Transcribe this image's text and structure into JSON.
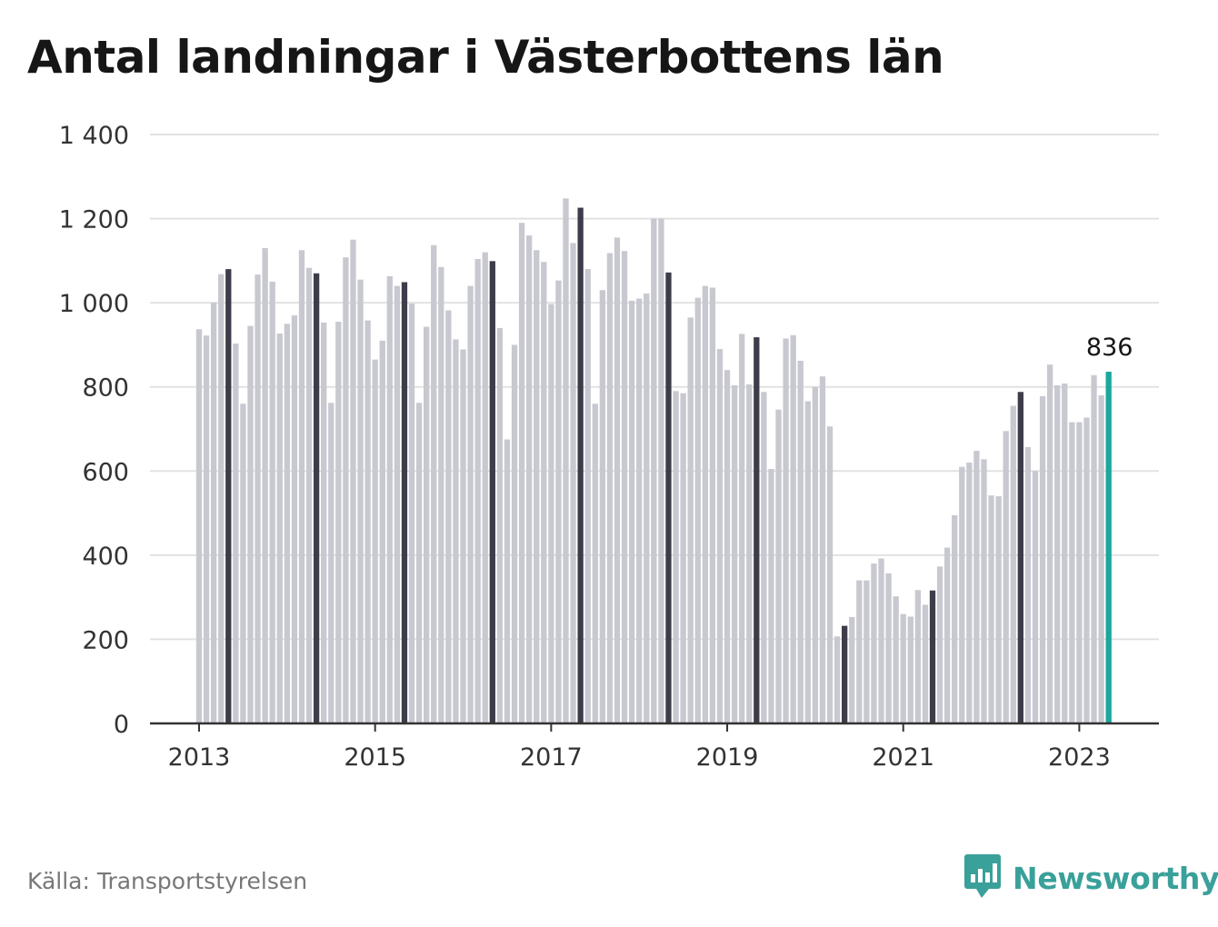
{
  "title": "Antal landningar i Västerbottens län",
  "source": "Källa: Transportstyrelsen",
  "brand": {
    "name": "Newsworthy",
    "icon": "bar-chart-speech-bubble-icon",
    "color": "#3aa09a"
  },
  "chart_data": {
    "type": "bar",
    "title": "Antal landningar i Västerbottens län",
    "xlabel": "",
    "ylabel": "",
    "ylim": [
      0,
      1400
    ],
    "yticks": [
      "0",
      "200",
      "400",
      "600",
      "800",
      "1 000",
      "1 200",
      "1 400"
    ],
    "xticks": [
      "2013",
      "2015",
      "2017",
      "2019",
      "2021",
      "2023"
    ],
    "grid": true,
    "start": "2013-01",
    "end": "2023-05",
    "colors": {
      "default": "#c8c8d0",
      "highlight_may": "#3d3d4a",
      "latest": "#1aa89c",
      "grid": "#e2e2e2",
      "axis": "#333333"
    },
    "annotation": {
      "category": "2023-05",
      "text": "836"
    },
    "values": [
      937,
      922,
      1000,
      1068,
      1080,
      903,
      760,
      945,
      1067,
      1130,
      1050,
      927,
      950,
      970,
      1125,
      1083,
      1070,
      953,
      762,
      955,
      1108,
      1150,
      1055,
      958,
      865,
      910,
      1063,
      1040,
      1049,
      998,
      762,
      943,
      1137,
      1085,
      982,
      913,
      889,
      1040,
      1104,
      1120,
      1099,
      940,
      675,
      900,
      1190,
      1160,
      1125,
      1097,
      997,
      1053,
      1248,
      1142,
      1226,
      1080,
      760,
      1030,
      1118,
      1155,
      1123,
      1005,
      1010,
      1022,
      1200,
      1200,
      1072,
      790,
      785,
      965,
      1012,
      1040,
      1036,
      890,
      840,
      804,
      926,
      806,
      918,
      788,
      605,
      746,
      915,
      923,
      862,
      766,
      800,
      825,
      706,
      207,
      232,
      253,
      340,
      340,
      380,
      392,
      357,
      302,
      260,
      254,
      317,
      282,
      316,
      373,
      418,
      495,
      610,
      620,
      648,
      628,
      542,
      540,
      695,
      755,
      788,
      657,
      600,
      778,
      853,
      804,
      808,
      716,
      716,
      727,
      828,
      780,
      836
    ]
  }
}
